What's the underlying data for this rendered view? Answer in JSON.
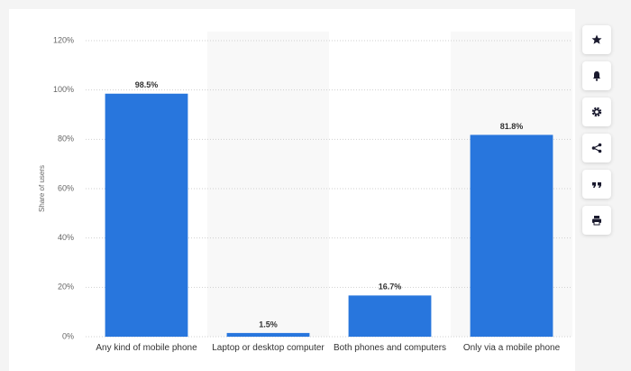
{
  "chart_data": {
    "type": "bar",
    "y_label": "Share of users",
    "categories": [
      "Any kind of mobile phone",
      "Laptop or desktop computer",
      "Both phones and computers",
      "Only via a mobile phone"
    ],
    "values": [
      98.5,
      1.5,
      16.7,
      81.8
    ],
    "value_labels": [
      "98.5%",
      "1.5%",
      "16.7%",
      "81.8%"
    ],
    "color": "#2876dd",
    "ylim": [
      0,
      120
    ],
    "yticks": [
      {
        "value": 0,
        "label": "0%"
      },
      {
        "value": 20,
        "label": "20%"
      },
      {
        "value": 40,
        "label": "40%"
      },
      {
        "value": 60,
        "label": "60%"
      },
      {
        "value": 80,
        "label": "80%"
      },
      {
        "value": 100,
        "label": "100%"
      },
      {
        "value": 120,
        "label": "120%"
      }
    ],
    "grid": true
  }
}
